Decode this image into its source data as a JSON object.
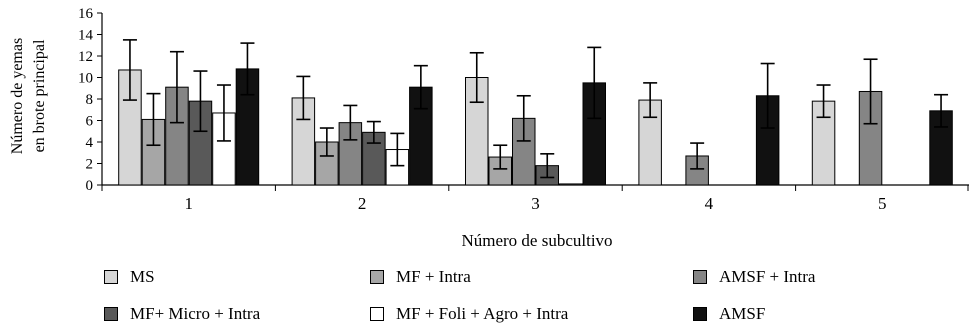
{
  "chart_data": {
    "type": "bar",
    "title": "",
    "xlabel": "Número de subcultivo",
    "ylabel_lines": [
      "Número de yemas",
      "en brote principal"
    ],
    "categories": [
      "1",
      "2",
      "3",
      "4",
      "5"
    ],
    "ylim": [
      0,
      16
    ],
    "yticks": [
      "0",
      "2",
      "4",
      "6",
      "8",
      "10",
      "12",
      "14",
      "16"
    ],
    "grid": false,
    "legend_position": "bottom",
    "series": [
      {
        "name": "MS",
        "color": "#d6d6d6",
        "values": [
          10.7,
          8.1,
          10.0,
          7.9,
          7.8
        ],
        "errors": [
          2.8,
          2.0,
          2.3,
          1.6,
          1.5
        ]
      },
      {
        "name": "MF + Intra",
        "color": "#a6a6a6",
        "values": [
          6.1,
          4.0,
          2.6,
          null,
          null
        ],
        "errors": [
          2.4,
          1.3,
          1.1,
          null,
          null
        ]
      },
      {
        "name": "AMSF + Intra",
        "color": "#858585",
        "values": [
          9.1,
          5.8,
          6.2,
          2.7,
          8.7
        ],
        "errors": [
          3.3,
          1.6,
          2.1,
          1.2,
          3.0
        ]
      },
      {
        "name": "MF+ Micro + Intra",
        "color": "#595959",
        "values": [
          7.8,
          4.9,
          1.8,
          null,
          null
        ],
        "errors": [
          2.8,
          1.0,
          1.1,
          null,
          null
        ]
      },
      {
        "name": "MF + Foli + Agro + Intra",
        "color": "#ffffff",
        "values": [
          6.7,
          3.3,
          0.1,
          null,
          null
        ],
        "errors": [
          2.6,
          1.5,
          0,
          null,
          null
        ]
      },
      {
        "name": "AMSF",
        "color": "#111111",
        "values": [
          10.8,
          9.1,
          9.5,
          8.3,
          6.9
        ],
        "errors": [
          2.4,
          2.0,
          3.3,
          3.0,
          1.5
        ]
      }
    ]
  }
}
